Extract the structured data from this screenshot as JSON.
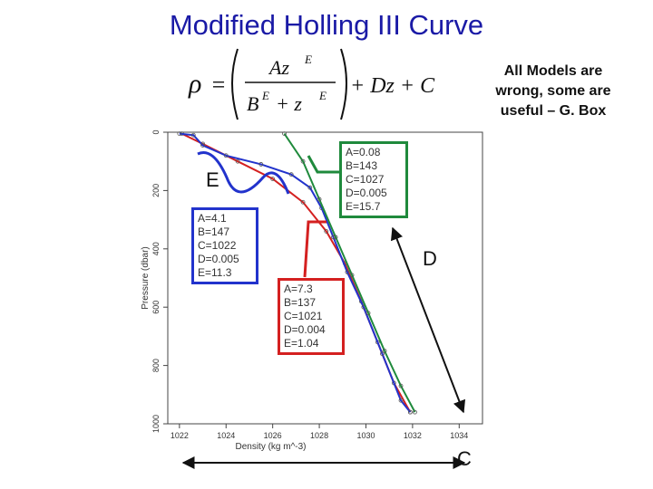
{
  "title": "Modified Holling III Curve",
  "quote": "All Models are wrong, some are useful – G. Box",
  "formula": {
    "lhs": "ρ",
    "numerator": "Az",
    "numerator_exp": "E",
    "denominator_b": "B",
    "denominator_b_exp": "E",
    "denominator_plus": "+ z",
    "denominator_z_exp": "E",
    "tail": "+ Dz + C"
  },
  "labels": {
    "E": "E",
    "D": "D",
    "C": "C"
  },
  "boxes": {
    "green": {
      "color": "#1f8a3c",
      "lines": [
        "A=0.08",
        "B=143",
        "C=1027",
        "D=0.005",
        "E=15.7"
      ]
    },
    "blue": {
      "color": "#2233cc",
      "lines": [
        "A=4.1",
        "B=147",
        "C=1022",
        "D=0.005",
        "E=11.3"
      ]
    },
    "red": {
      "color": "#d42020",
      "lines": [
        "A=7.3",
        "B=137",
        "C=1021",
        "D=0.004",
        "E=1.04"
      ]
    }
  },
  "chart_data": {
    "type": "line",
    "title": "",
    "xlabel": "Density (kg m^-3)",
    "ylabel": "Pressure (dbar)",
    "xlim": [
      1021.5,
      1035
    ],
    "ylim": [
      0,
      1000
    ],
    "y_inverted": true,
    "x_ticks": [
      1022,
      1024,
      1026,
      1028,
      1030,
      1032,
      1034
    ],
    "y_ticks": [
      0,
      200,
      400,
      600,
      800,
      1000
    ],
    "grid": false,
    "series": [
      {
        "color": "#d42020",
        "points": [
          [
            1022.1,
            5
          ],
          [
            1023.0,
            40
          ],
          [
            1024.5,
            100
          ],
          [
            1026.0,
            160
          ],
          [
            1027.3,
            240
          ],
          [
            1028.3,
            340
          ],
          [
            1029.1,
            450
          ],
          [
            1029.8,
            580
          ],
          [
            1030.5,
            720
          ],
          [
            1031.2,
            860
          ],
          [
            1031.9,
            960
          ]
        ]
      },
      {
        "color": "#2233cc",
        "points": [
          [
            1022.0,
            5
          ],
          [
            1022.6,
            10
          ],
          [
            1023.0,
            45
          ],
          [
            1024.0,
            80
          ],
          [
            1025.5,
            110
          ],
          [
            1026.8,
            145
          ],
          [
            1027.6,
            190
          ],
          [
            1028.1,
            260
          ],
          [
            1028.6,
            360
          ],
          [
            1029.2,
            480
          ],
          [
            1029.9,
            600
          ],
          [
            1030.7,
            760
          ],
          [
            1031.5,
            920
          ],
          [
            1031.9,
            960
          ]
        ]
      },
      {
        "color": "#1f8a3c",
        "points": [
          [
            1026.5,
            5
          ],
          [
            1027.3,
            100
          ],
          [
            1028.0,
            230
          ],
          [
            1028.7,
            360
          ],
          [
            1029.4,
            490
          ],
          [
            1030.1,
            620
          ],
          [
            1030.8,
            750
          ],
          [
            1031.5,
            870
          ],
          [
            1032.1,
            960
          ]
        ]
      }
    ]
  }
}
